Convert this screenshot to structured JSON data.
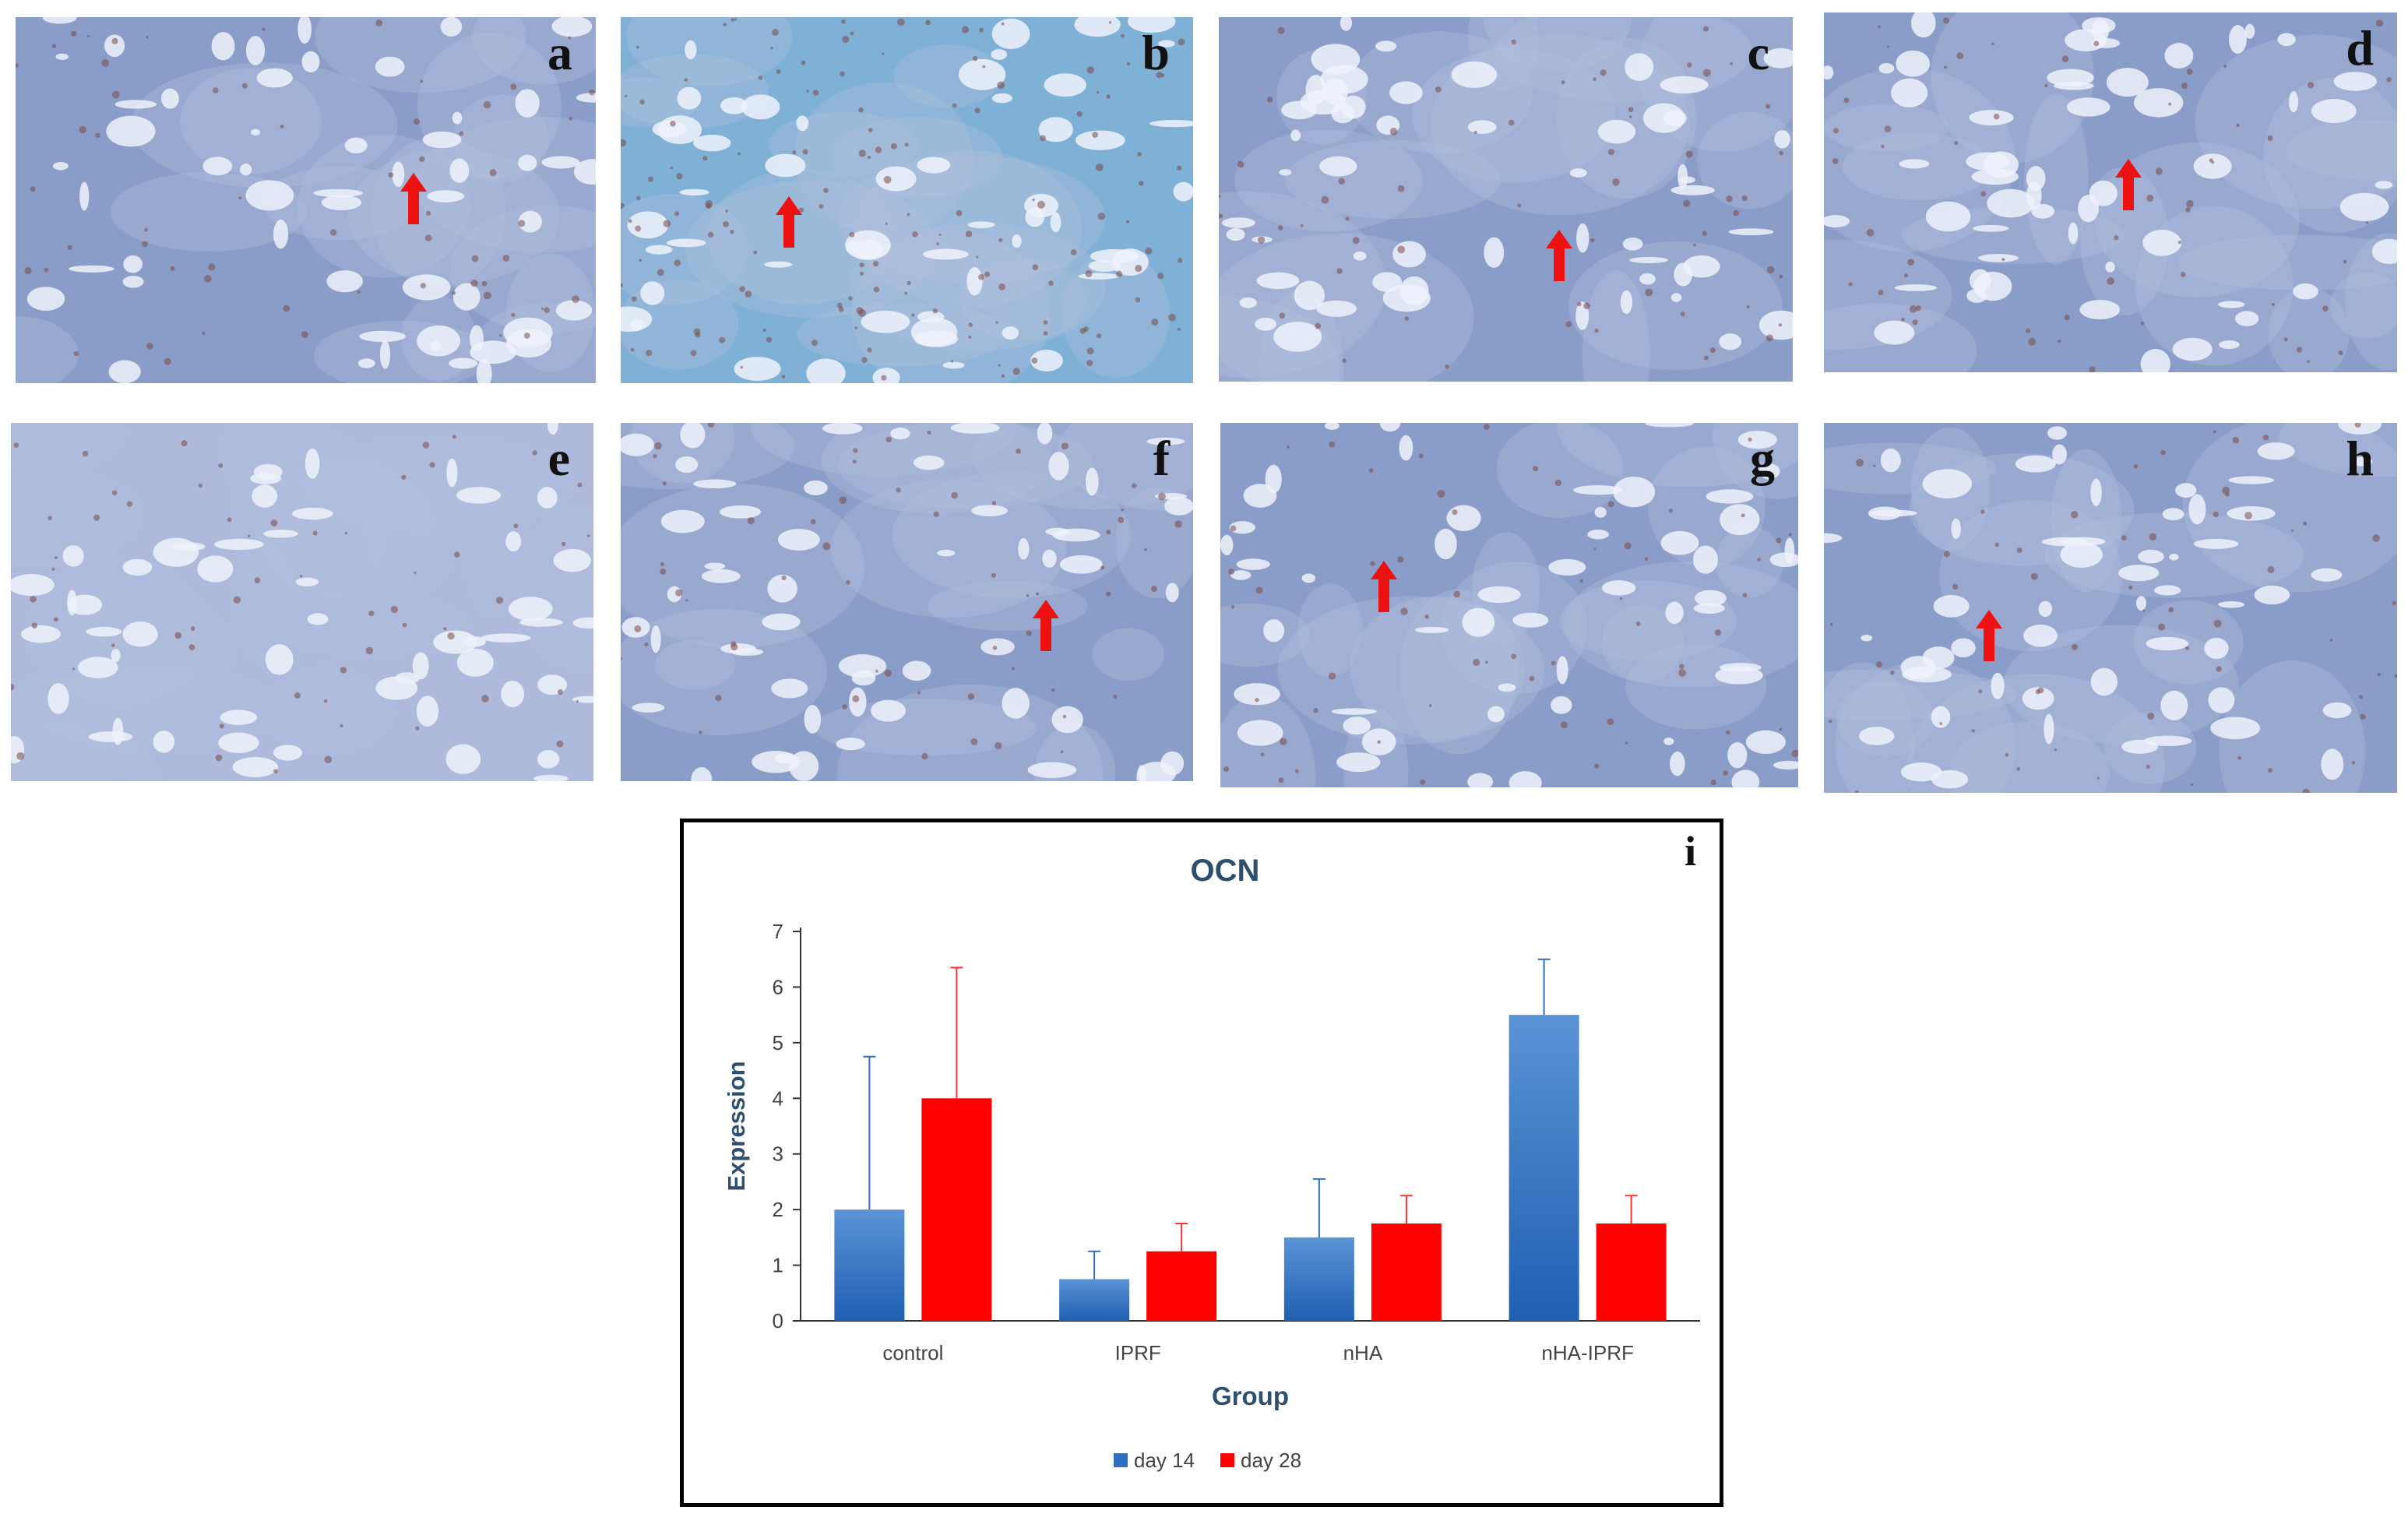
{
  "figure": {
    "panel_labels": [
      "a",
      "b",
      "c",
      "d",
      "e",
      "f",
      "g",
      "h"
    ],
    "chart_panel_label": "i",
    "colors": {
      "tissue_blue": "#8a9cc8",
      "tissue_light": "#b3c0dd",
      "stain_brown": "#7a4a48",
      "arrow_red": "#ee1111"
    }
  },
  "chart_data": {
    "type": "bar",
    "title": "OCN",
    "xlabel": "Group",
    "ylabel": "Expression",
    "ylim": [
      0,
      7
    ],
    "yticks": [
      "0",
      "1",
      "2",
      "3",
      "4",
      "5",
      "6",
      "7"
    ],
    "categories": [
      "control",
      "IPRF",
      "nHA",
      "nHA-IPRF"
    ],
    "series": [
      {
        "name": "day 14",
        "color": "#2e6fc2",
        "values": [
          2.0,
          0.75,
          1.5,
          5.5
        ],
        "errors": [
          2.75,
          0.5,
          1.05,
          1.0
        ]
      },
      {
        "name": "day 28",
        "color": "#ff0000",
        "values": [
          4.0,
          1.25,
          1.75,
          1.75
        ],
        "errors": [
          2.35,
          0.5,
          0.5,
          0.5
        ]
      }
    ],
    "legend_position": "bottom-center",
    "grid": false
  }
}
